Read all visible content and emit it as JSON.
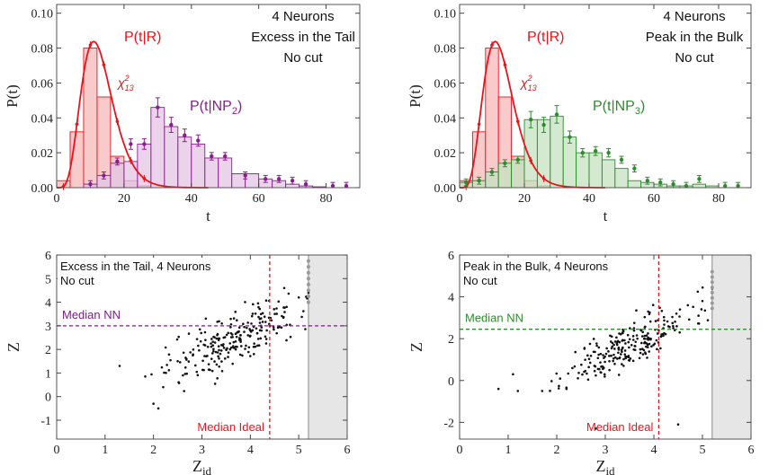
{
  "chart_data": [
    {
      "type": "bar",
      "panel": "top-left",
      "title": "",
      "xlabel": "t",
      "ylabel": "P(t)",
      "xlim": [
        0,
        90
      ],
      "ylim": [
        0,
        0.105
      ],
      "xticks": [
        "0",
        "20",
        "40",
        "60",
        "80"
      ],
      "yticks": [
        "0.00",
        "0.02",
        "0.04",
        "0.06",
        "0.08",
        "0.10"
      ],
      "annotations": [
        "4 Neurons",
        "Excess in the Tail",
        "No cut"
      ],
      "reference_curve": {
        "name": "χ²₁₃",
        "label_main": "χ",
        "label_sup": "2",
        "label_sub": "13",
        "color": "#e8141a",
        "dof": 13
      },
      "series": [
        {
          "name": "P(t|R)",
          "color": "#e8141a",
          "fill": "#f6b8b8",
          "bin_width": 4,
          "bins": [
            [
              0,
              0.004
            ],
            [
              4,
              0.032
            ],
            [
              8,
              0.08
            ],
            [
              12,
              0.052
            ],
            [
              16,
              0.018
            ],
            [
              20,
              0.004
            ],
            [
              24,
              0.001
            ]
          ]
        },
        {
          "name": "P(t|NP",
          "name_sub": "2",
          "name_end": ")",
          "color": "#8a1e8c",
          "fill": "#e3c4e4",
          "bin_width": 4,
          "bins": [
            [
              8,
              0.002
            ],
            [
              12,
              0.007
            ],
            [
              16,
              0.014
            ],
            [
              20,
              0.015
            ],
            [
              24,
              0.025
            ],
            [
              28,
              0.046
            ],
            [
              32,
              0.035
            ],
            [
              36,
              0.029
            ],
            [
              40,
              0.025
            ],
            [
              44,
              0.017
            ],
            [
              48,
              0.017
            ],
            [
              52,
              0.008
            ],
            [
              56,
              0.008
            ],
            [
              60,
              0.005
            ],
            [
              64,
              0.004
            ],
            [
              68,
              0.002
            ],
            [
              72,
              0.001
            ],
            [
              76,
              0.0005
            ]
          ]
        }
      ],
      "points": [
        {
          "series": 1,
          "values": [
            [
              10,
              0.002
            ],
            [
              14,
              0.007
            ],
            [
              18,
              0.015
            ],
            [
              22,
              0.025
            ],
            [
              26,
              0.025
            ],
            [
              30,
              0.046
            ],
            [
              34,
              0.036
            ],
            [
              38,
              0.03
            ],
            [
              42,
              0.027
            ],
            [
              46,
              0.018
            ],
            [
              50,
              0.018
            ],
            [
              56,
              0.007
            ],
            [
              62,
              0.005
            ],
            [
              66,
              0.005
            ],
            [
              70,
              0.004
            ],
            [
              74,
              0.002
            ],
            [
              82,
              0.001
            ],
            [
              86,
              0.001
            ]
          ]
        }
      ]
    },
    {
      "type": "bar",
      "panel": "top-right",
      "title": "",
      "xlabel": "t",
      "ylabel": "P(t)",
      "xlim": [
        0,
        90
      ],
      "ylim": [
        0,
        0.105
      ],
      "xticks": [
        "0",
        "20",
        "40",
        "60",
        "80"
      ],
      "yticks": [
        "0.00",
        "0.02",
        "0.04",
        "0.06",
        "0.08",
        "0.10"
      ],
      "annotations": [
        "4 Neurons",
        "Peak in the Bulk",
        "No cut"
      ],
      "reference_curve": {
        "name": "χ²₁₃",
        "label_main": "χ",
        "label_sup": "2",
        "label_sub": "13",
        "color": "#e8141a",
        "dof": 13
      },
      "series": [
        {
          "name": "P(t|R)",
          "color": "#e8141a",
          "fill": "#f6b8b8",
          "bin_width": 4,
          "bins": [
            [
              0,
              0.004
            ],
            [
              4,
              0.032
            ],
            [
              8,
              0.08
            ],
            [
              12,
              0.052
            ],
            [
              16,
              0.018
            ],
            [
              20,
              0.004
            ],
            [
              24,
              0.001
            ]
          ]
        },
        {
          "name": "P(t|NP",
          "name_sub": "3",
          "name_end": ")",
          "color": "#2e8b2e",
          "fill": "#c4e2c0",
          "bin_width": 4,
          "bins": [
            [
              0,
              0.003
            ],
            [
              4,
              0.004
            ],
            [
              8,
              0.009
            ],
            [
              12,
              0.014
            ],
            [
              16,
              0.016
            ],
            [
              20,
              0.039
            ],
            [
              24,
              0.039
            ],
            [
              28,
              0.041
            ],
            [
              32,
              0.029
            ],
            [
              36,
              0.02
            ],
            [
              40,
              0.02
            ],
            [
              44,
              0.016
            ],
            [
              48,
              0.011
            ],
            [
              52,
              0.004
            ],
            [
              56,
              0.003
            ],
            [
              60,
              0.002
            ],
            [
              64,
              0.001
            ],
            [
              68,
              0.001
            ],
            [
              72,
              0.002
            ],
            [
              76,
              0.001
            ]
          ]
        }
      ],
      "points": [
        {
          "series": 1,
          "values": [
            [
              2,
              0.003
            ],
            [
              6,
              0.004
            ],
            [
              10,
              0.009
            ],
            [
              14,
              0.014
            ],
            [
              18,
              0.016
            ],
            [
              22,
              0.039
            ],
            [
              26,
              0.036
            ],
            [
              30,
              0.042
            ],
            [
              34,
              0.029
            ],
            [
              38,
              0.02
            ],
            [
              42,
              0.021
            ],
            [
              46,
              0.02
            ],
            [
              50,
              0.016
            ],
            [
              54,
              0.011
            ],
            [
              58,
              0.004
            ],
            [
              62,
              0.003
            ],
            [
              66,
              0.002
            ],
            [
              70,
              0.001
            ],
            [
              74,
              0.005
            ],
            [
              82,
              0.001
            ],
            [
              86,
              0.001
            ]
          ]
        }
      ]
    },
    {
      "type": "scatter",
      "panel": "bottom-left",
      "title": "",
      "xlabel": "Z",
      "xlabel_sub": "id",
      "ylabel": "Z",
      "xlim": [
        0,
        6
      ],
      "ylim": [
        -1.8,
        6
      ],
      "xticks": [
        "0",
        "1",
        "2",
        "3",
        "4",
        "5",
        "6"
      ],
      "yticks": [
        "-1",
        "0",
        "1",
        "2",
        "3",
        "4",
        "5",
        "6"
      ],
      "annotations": [
        "Excess in the Tail, 4 Neurons",
        "No cut"
      ],
      "hline": {
        "label": "Median NN",
        "value": 3.0,
        "color": "#7a1f86"
      },
      "vline": {
        "label": "Median Ideal",
        "value": 4.4,
        "color": "#e8141a"
      },
      "shaded_region": {
        "from": 5.2,
        "to": 6.0,
        "color": "#e6e6e6"
      },
      "seed": 7,
      "n_points": 230,
      "center": [
        3.6,
        2.4
      ],
      "slope": 0.9,
      "sample_points": [
        [
          1.3,
          1.3
        ],
        [
          2.0,
          -0.3
        ],
        [
          2.1,
          -0.5
        ],
        [
          2.2,
          0.4
        ],
        [
          2.5,
          1.5
        ],
        [
          3.2,
          1.6
        ],
        [
          3.8,
          2.4
        ],
        [
          4.0,
          2.8
        ],
        [
          4.4,
          3.0
        ],
        [
          4.7,
          4.6
        ],
        [
          5.0,
          4.2
        ],
        [
          5.2,
          4.4
        ]
      ]
    },
    {
      "type": "scatter",
      "panel": "bottom-right",
      "title": "",
      "xlabel": "Z",
      "xlabel_sub": "id",
      "ylabel": "Z",
      "xlim": [
        0,
        6
      ],
      "ylim": [
        -2.8,
        6
      ],
      "xticks": [
        "0",
        "1",
        "2",
        "3",
        "4",
        "5",
        "6"
      ],
      "yticks": [
        "-2",
        "0",
        "2",
        "4",
        "6"
      ],
      "annotations": [
        "Peak in the Bulk, 4 Neurons",
        "No cut"
      ],
      "hline": {
        "label": "Median NN",
        "value": 2.45,
        "color": "#2e8b2e"
      },
      "vline": {
        "label": "Median Ideal",
        "value": 4.1,
        "color": "#e8141a"
      },
      "shaded_region": {
        "from": 5.2,
        "to": 6.0,
        "color": "#e6e6e6"
      },
      "seed": 11,
      "n_points": 230,
      "center": [
        3.5,
        1.7
      ],
      "slope": 1.1,
      "sample_points": [
        [
          0.8,
          -0.4
        ],
        [
          1.1,
          0.3
        ],
        [
          1.2,
          -0.5
        ],
        [
          1.7,
          -0.5
        ],
        [
          2.2,
          -0.4
        ],
        [
          2.8,
          -2.3
        ],
        [
          3.3,
          1.1
        ],
        [
          3.8,
          2.0
        ],
        [
          4.1,
          2.4
        ],
        [
          4.5,
          -2.1
        ],
        [
          4.7,
          3.6
        ],
        [
          5.0,
          3.8
        ],
        [
          5.2,
          4.4
        ]
      ]
    }
  ]
}
